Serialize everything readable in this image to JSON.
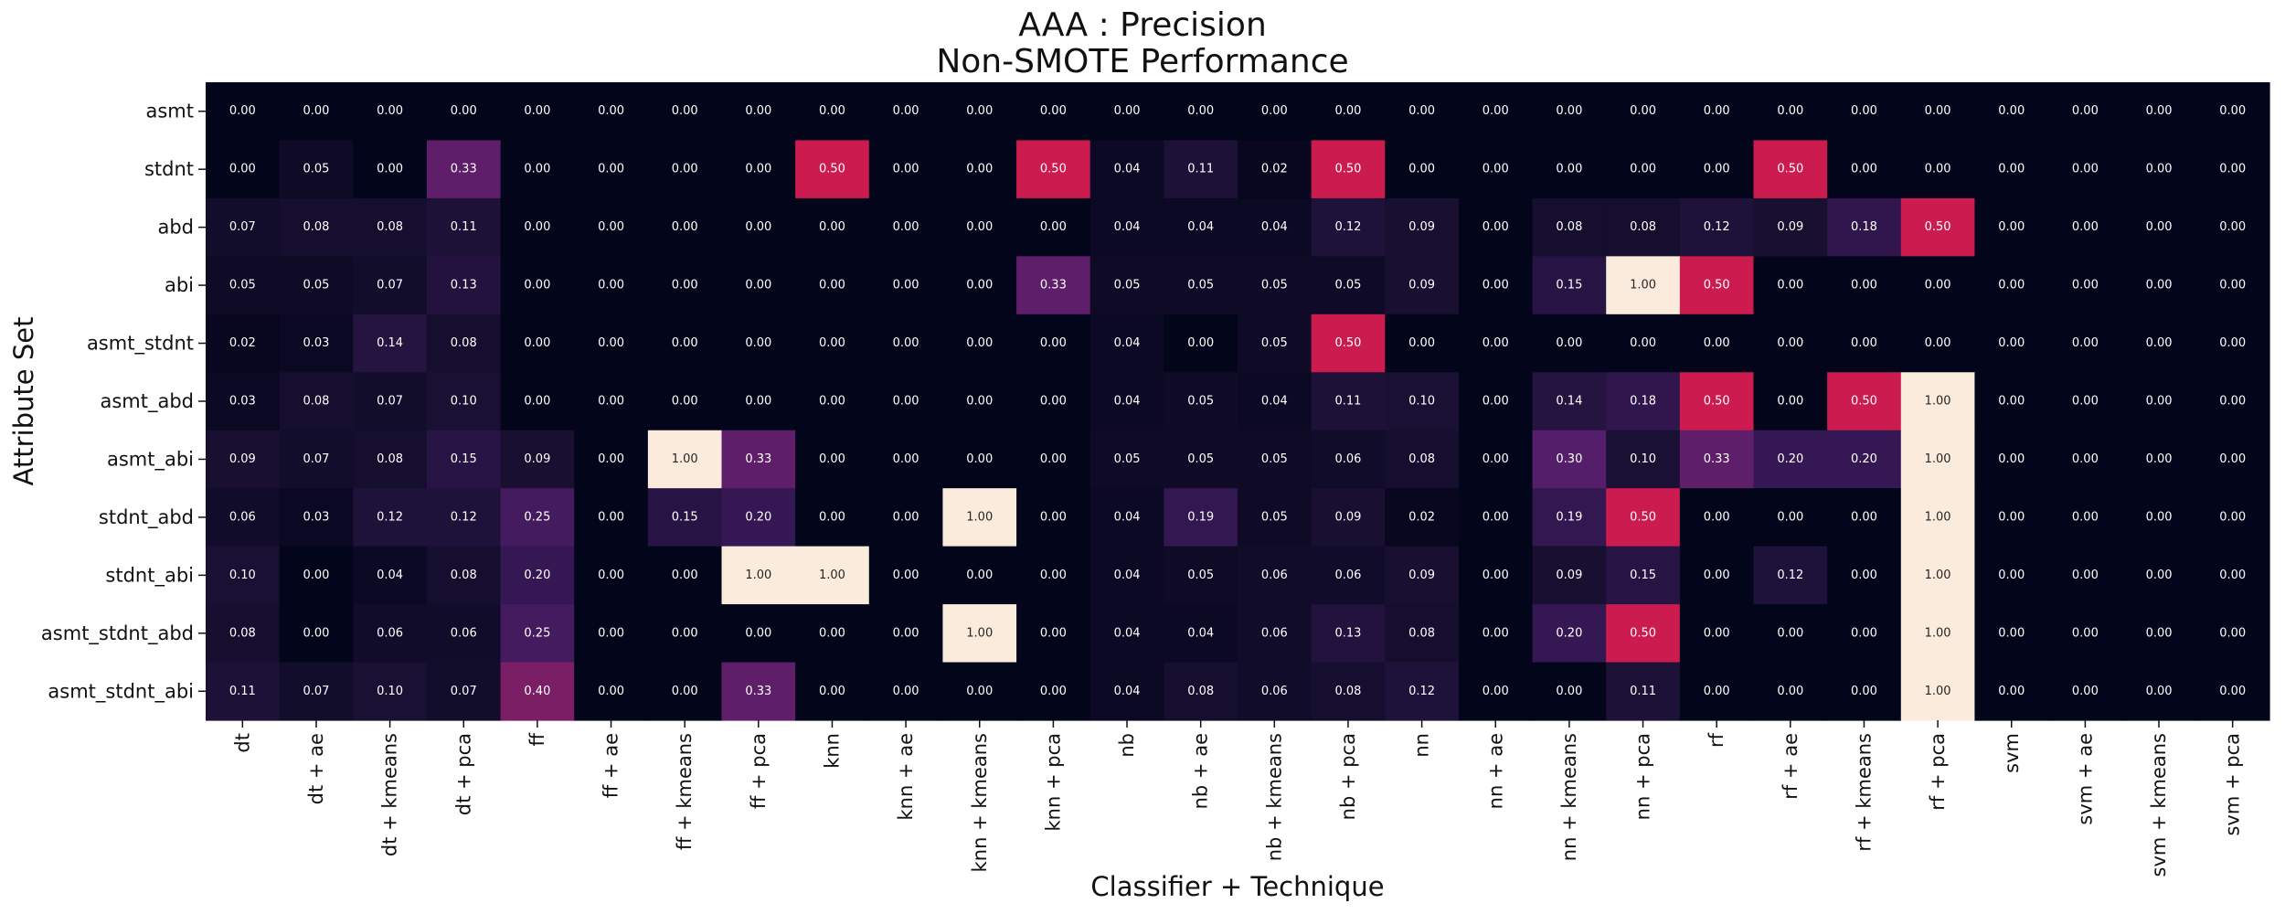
{
  "chart_data": {
    "type": "heatmap",
    "title": [
      "AAA : Precision",
      "Non-SMOTE Performance"
    ],
    "xlabel": "Classifier + Technique",
    "ylabel": "Attribute Set",
    "x_categories": [
      "dt",
      "dt + ae",
      "dt + kmeans",
      "dt + pca",
      "ff",
      "ff + ae",
      "ff + kmeans",
      "ff + pca",
      "knn",
      "knn + ae",
      "knn + kmeans",
      "knn + pca",
      "nb",
      "nb + ae",
      "nb + kmeans",
      "nb + pca",
      "nn",
      "nn + ae",
      "nn + kmeans",
      "nn + pca",
      "rf",
      "rf + ae",
      "rf + kmeans",
      "rf + pca",
      "svm",
      "svm + ae",
      "svm + kmeans",
      "svm + pca"
    ],
    "y_categories": [
      "asmt",
      "stdnt",
      "abd",
      "abi",
      "asmt_stdnt",
      "asmt_abd",
      "asmt_abi",
      "stdnt_abd",
      "stdnt_abi",
      "asmt_stdnt_abd",
      "asmt_stdnt_abi"
    ],
    "values": [
      [
        0.0,
        0.0,
        0.0,
        0.0,
        0.0,
        0.0,
        0.0,
        0.0,
        0.0,
        0.0,
        0.0,
        0.0,
        0.0,
        0.0,
        0.0,
        0.0,
        0.0,
        0.0,
        0.0,
        0.0,
        0.0,
        0.0,
        0.0,
        0.0,
        0.0,
        0.0,
        0.0,
        0.0
      ],
      [
        0.0,
        0.05,
        0.0,
        0.33,
        0.0,
        0.0,
        0.0,
        0.0,
        0.5,
        0.0,
        0.0,
        0.5,
        0.04,
        0.11,
        0.02,
        0.5,
        0.0,
        0.0,
        0.0,
        0.0,
        0.0,
        0.5,
        0.0,
        0.0,
        0.0,
        0.0,
        0.0,
        0.0
      ],
      [
        0.07,
        0.08,
        0.08,
        0.11,
        0.0,
        0.0,
        0.0,
        0.0,
        0.0,
        0.0,
        0.0,
        0.0,
        0.04,
        0.04,
        0.04,
        0.12,
        0.09,
        0.0,
        0.08,
        0.08,
        0.12,
        0.09,
        0.18,
        0.5,
        0.0,
        0.0,
        0.0,
        0.0
      ],
      [
        0.05,
        0.05,
        0.07,
        0.13,
        0.0,
        0.0,
        0.0,
        0.0,
        0.0,
        0.0,
        0.0,
        0.33,
        0.05,
        0.05,
        0.05,
        0.05,
        0.09,
        0.0,
        0.15,
        1.0,
        0.5,
        0.0,
        0.0,
        0.0,
        0.0,
        0.0,
        0.0,
        0.0
      ],
      [
        0.02,
        0.03,
        0.14,
        0.08,
        0.0,
        0.0,
        0.0,
        0.0,
        0.0,
        0.0,
        0.0,
        0.0,
        0.04,
        0.0,
        0.05,
        0.5,
        0.0,
        0.0,
        0.0,
        0.0,
        0.0,
        0.0,
        0.0,
        0.0,
        0.0,
        0.0,
        0.0,
        0.0
      ],
      [
        0.03,
        0.08,
        0.07,
        0.1,
        0.0,
        0.0,
        0.0,
        0.0,
        0.0,
        0.0,
        0.0,
        0.0,
        0.04,
        0.05,
        0.04,
        0.11,
        0.1,
        0.0,
        0.14,
        0.18,
        0.5,
        0.0,
        0.5,
        1.0,
        0.0,
        0.0,
        0.0,
        0.0
      ],
      [
        0.09,
        0.07,
        0.08,
        0.15,
        0.09,
        0.0,
        1.0,
        0.33,
        0.0,
        0.0,
        0.0,
        0.0,
        0.05,
        0.05,
        0.05,
        0.06,
        0.08,
        0.0,
        0.3,
        0.1,
        0.33,
        0.2,
        0.2,
        1.0,
        0.0,
        0.0,
        0.0,
        0.0
      ],
      [
        0.06,
        0.03,
        0.12,
        0.12,
        0.25,
        0.0,
        0.15,
        0.2,
        0.0,
        0.0,
        1.0,
        0.0,
        0.04,
        0.19,
        0.05,
        0.09,
        0.02,
        0.0,
        0.19,
        0.5,
        0.0,
        0.0,
        0.0,
        1.0,
        0.0,
        0.0,
        0.0,
        0.0
      ],
      [
        0.1,
        0.0,
        0.04,
        0.08,
        0.2,
        0.0,
        0.0,
        1.0,
        1.0,
        0.0,
        0.0,
        0.0,
        0.04,
        0.05,
        0.06,
        0.06,
        0.09,
        0.0,
        0.09,
        0.15,
        0.0,
        0.12,
        0.0,
        1.0,
        0.0,
        0.0,
        0.0,
        0.0
      ],
      [
        0.08,
        0.0,
        0.06,
        0.06,
        0.25,
        0.0,
        0.0,
        0.0,
        0.0,
        0.0,
        1.0,
        0.0,
        0.04,
        0.04,
        0.06,
        0.13,
        0.08,
        0.0,
        0.2,
        0.5,
        0.0,
        0.0,
        0.0,
        1.0,
        0.0,
        0.0,
        0.0,
        0.0
      ],
      [
        0.11,
        0.07,
        0.1,
        0.07,
        0.4,
        0.0,
        0.0,
        0.33,
        0.0,
        0.0,
        0.0,
        0.0,
        0.04,
        0.08,
        0.06,
        0.08,
        0.12,
        0.0,
        0.0,
        0.11,
        0.0,
        0.0,
        0.0,
        1.0,
        0.0,
        0.0,
        0.0,
        0.0
      ]
    ],
    "vmin": 0,
    "vmax": 1,
    "colormap": "rocket",
    "value_format": "0.00",
    "colorbar": false
  }
}
